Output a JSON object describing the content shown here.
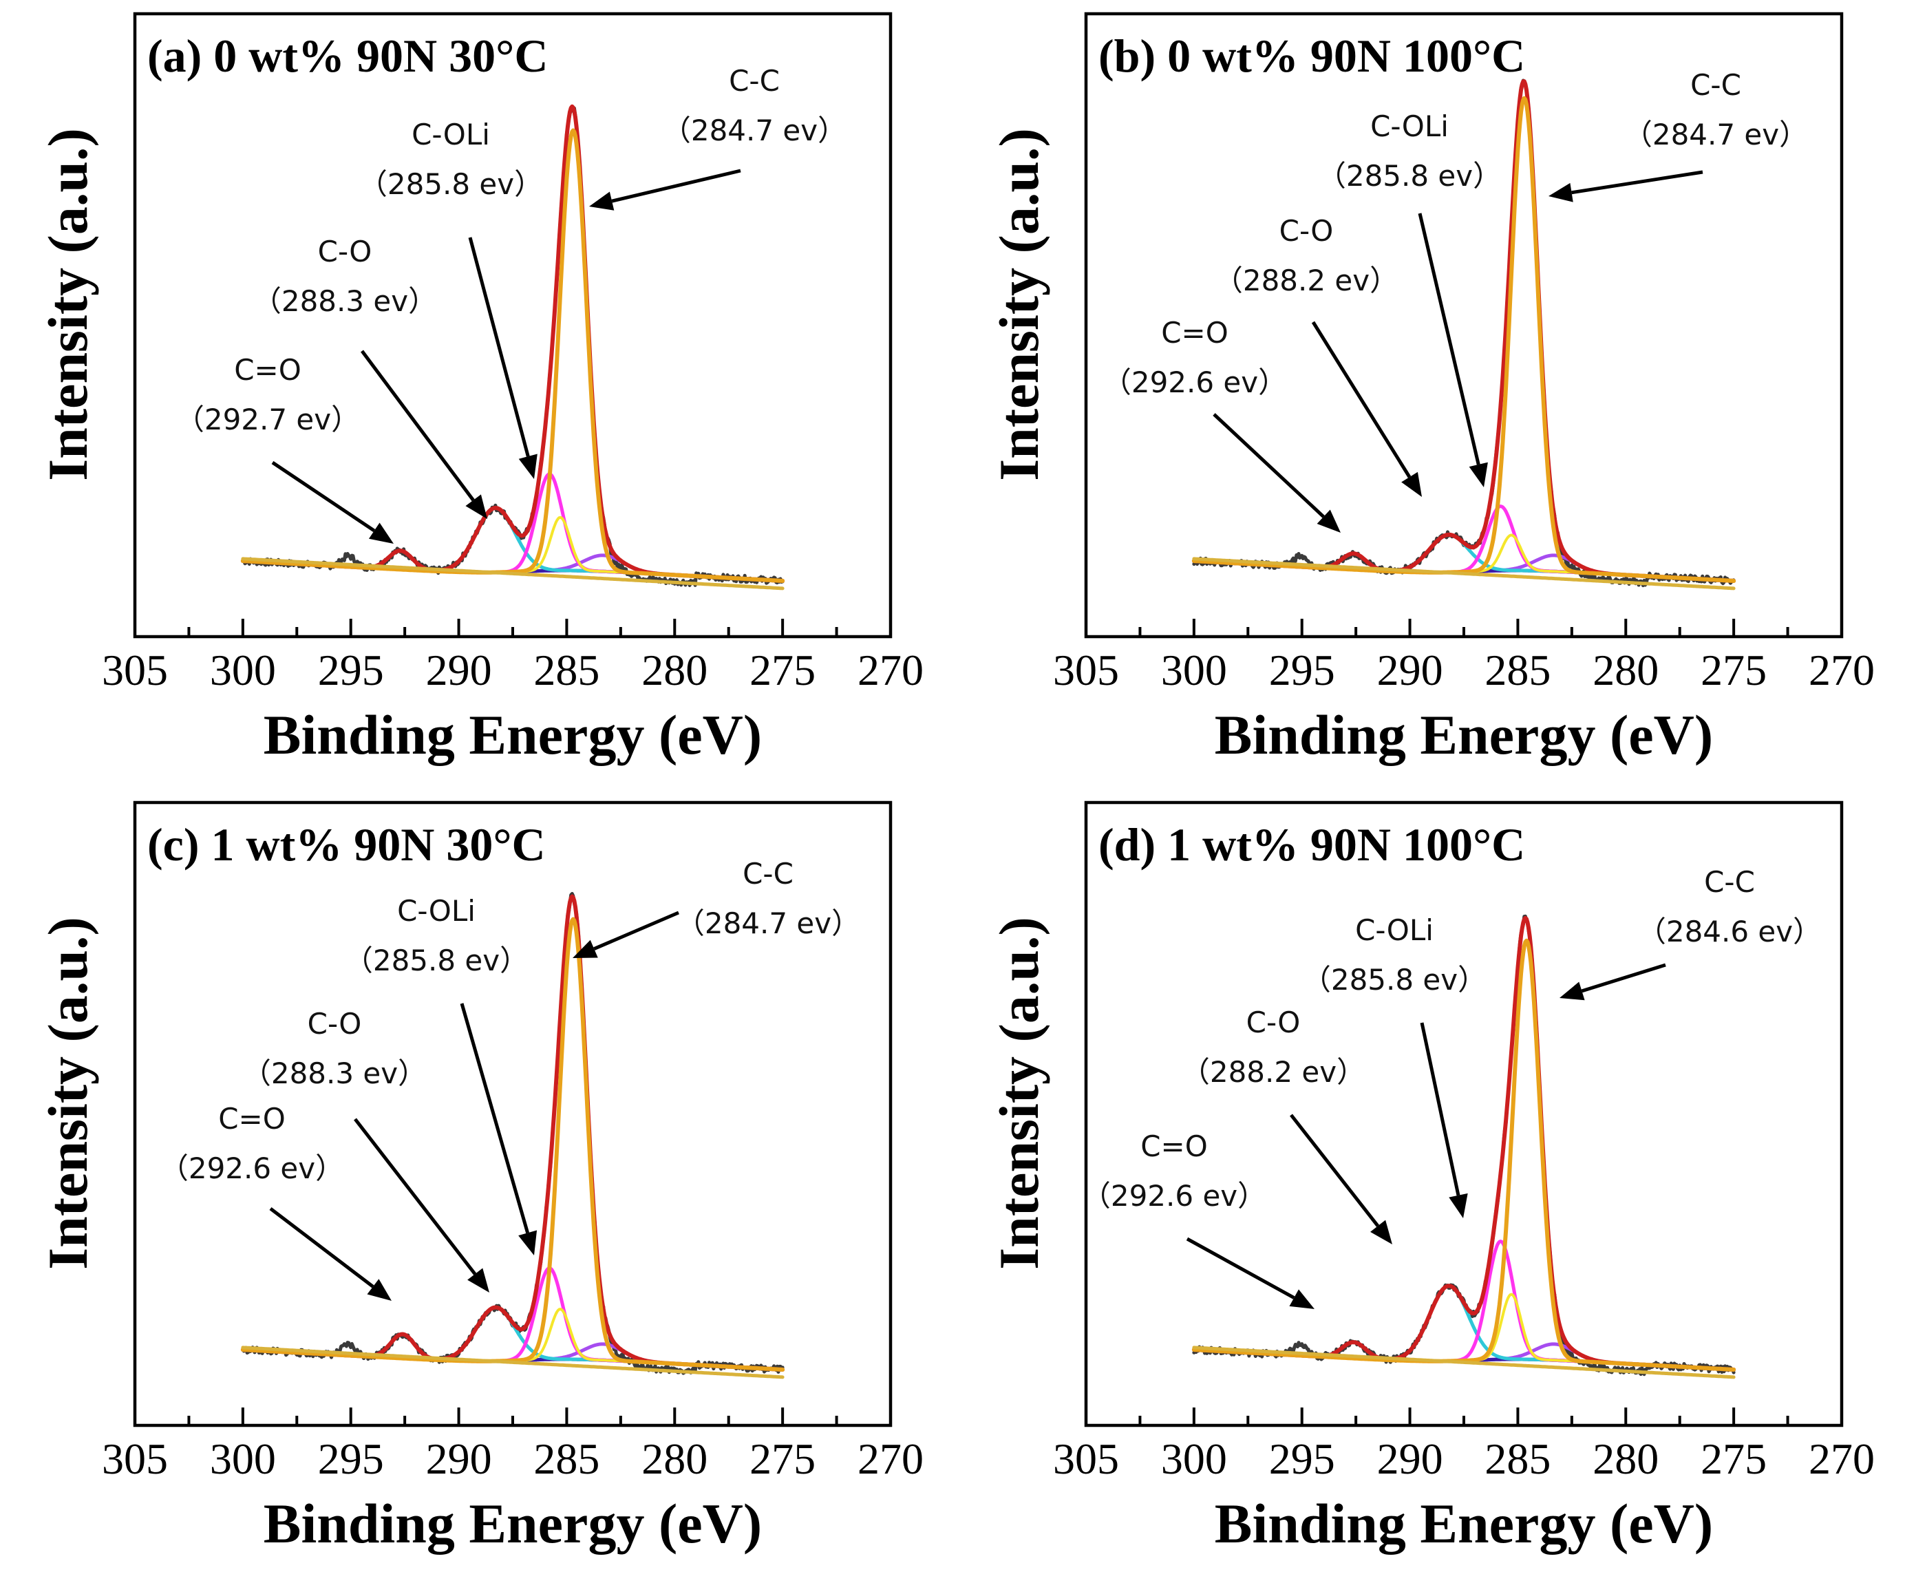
{
  "figure": {
    "description_free": true
  },
  "axis_text": {
    "xlabel": "Binding Energy (eV)",
    "ylabel": "Intensity (a.u.)"
  },
  "colors": {
    "raw": "#3a3a3a",
    "envelope": "#cc1f1f",
    "background": "#1c3fb0",
    "cc": "#e8a21a",
    "coli": "#ff33ee",
    "co": "#2ec8d8",
    "cdo": "#3a1aa8",
    "baseline_fit": "#d9b23a",
    "shoulder": "#a64cf0",
    "yellow": "#f5e62a"
  },
  "chart_data": [
    {
      "type": "line",
      "panel": "a",
      "title": "(a) 0 wt%  90N 30°C",
      "xlabel": "Binding Energy (eV)",
      "ylabel": "Intensity (a.u.)",
      "xlim": [
        305,
        270
      ],
      "xticks": [
        305,
        300,
        295,
        290,
        285,
        280,
        275,
        270
      ],
      "xrange_data": [
        300,
        275
      ],
      "peaks": [
        {
          "name": "C-C",
          "center": 284.7,
          "height": 0.82,
          "label": "C-C",
          "label_value": "（284.7 ev）"
        },
        {
          "name": "C-OLi",
          "center": 285.8,
          "height": 0.18,
          "label": "C-OLi",
          "label_value": "（285.8 ev）"
        },
        {
          "name": "C-O",
          "center": 288.3,
          "height": 0.12,
          "label": "C-O",
          "label_value": "（288.3 ev）"
        },
        {
          "name": "C=O",
          "center": 292.7,
          "height": 0.035,
          "label": "C=O",
          "label_value": "（292.7 ev）"
        }
      ]
    },
    {
      "type": "line",
      "panel": "b",
      "title": "(b) 0 wt%  90N 100°C",
      "xlabel": "Binding Energy (eV)",
      "ylabel": "Intensity (a.u.)",
      "xlim": [
        305,
        270
      ],
      "xticks": [
        305,
        300,
        295,
        290,
        285,
        280,
        275,
        270
      ],
      "xrange_data": [
        300,
        275
      ],
      "peaks": [
        {
          "name": "C-C",
          "center": 284.7,
          "height": 0.88,
          "label": "C-C",
          "label_value": "（284.7 ev）"
        },
        {
          "name": "C-OLi",
          "center": 285.8,
          "height": 0.12,
          "label": "C-OLi",
          "label_value": "（285.8 ev）"
        },
        {
          "name": "C-O",
          "center": 288.2,
          "height": 0.07,
          "label": "C-O",
          "label_value": "（288.2 ev）"
        },
        {
          "name": "C=O",
          "center": 292.6,
          "height": 0.03,
          "label": "C=O",
          "label_value": "（292.6 ev）"
        }
      ]
    },
    {
      "type": "line",
      "panel": "c",
      "title": "(c) 1 wt%  90N 30°C",
      "xlabel": "Binding Energy (eV)",
      "ylabel": "Intensity (a.u.)",
      "xlim": [
        305,
        270
      ],
      "xticks": [
        305,
        300,
        295,
        290,
        285,
        280,
        275,
        270
      ],
      "xrange_data": [
        300,
        275
      ],
      "peaks": [
        {
          "name": "C-C",
          "center": 284.7,
          "height": 0.82,
          "label": "C-C",
          "label_value": "（284.7 ev）"
        },
        {
          "name": "C-OLi",
          "center": 285.8,
          "height": 0.17,
          "label": "C-OLi",
          "label_value": "（285.8 ev）"
        },
        {
          "name": "C-O",
          "center": 288.3,
          "height": 0.1,
          "label": "C-O",
          "label_value": "（288.3 ev）"
        },
        {
          "name": "C=O",
          "center": 292.6,
          "height": 0.045,
          "label": "C=O",
          "label_value": "（292.6 ev）"
        }
      ]
    },
    {
      "type": "line",
      "panel": "d",
      "title": "(d) 1 wt%  90N 100°C",
      "xlabel": "Binding Energy (eV)",
      "ylabel": "Intensity (a.u.)",
      "xlim": [
        305,
        270
      ],
      "xticks": [
        305,
        300,
        295,
        290,
        285,
        280,
        275,
        270
      ],
      "xrange_data": [
        300,
        275
      ],
      "peaks": [
        {
          "name": "C-C",
          "center": 284.6,
          "height": 0.78,
          "label": "C-C",
          "label_value": "（284.6 ev）"
        },
        {
          "name": "C-OLi",
          "center": 285.8,
          "height": 0.22,
          "label": "C-OLi",
          "label_value": "（285.8 ev）"
        },
        {
          "name": "C-O",
          "center": 288.2,
          "height": 0.14,
          "label": "C-O",
          "label_value": "（288.2 ev）"
        },
        {
          "name": "C=O",
          "center": 292.6,
          "height": 0.03,
          "label": "C=O",
          "label_value": "（292.6 ev）"
        }
      ]
    }
  ]
}
